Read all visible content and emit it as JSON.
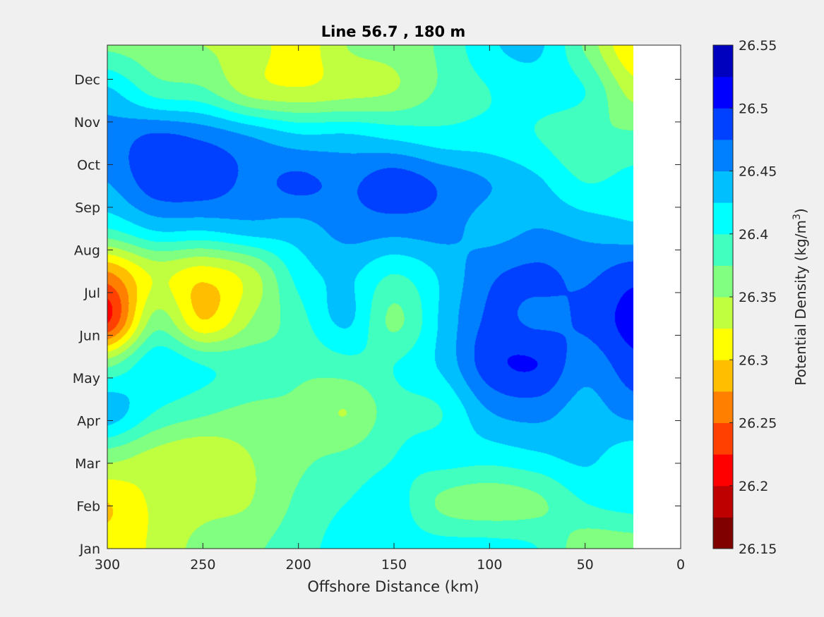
{
  "chart_data": {
    "type": "heatmap",
    "subtype": "filled-contour",
    "title": "Line 56.7 , 180 m",
    "xlabel": "Offshore Distance (km)",
    "xlim": [
      300,
      0
    ],
    "x_reversed": true,
    "x_ticks": [
      "300",
      "250",
      "200",
      "150",
      "100",
      "50",
      "0"
    ],
    "x_data_max": 25,
    "y_ticks": [
      "Jan",
      "Feb",
      "Mar",
      "Apr",
      "May",
      "Jun",
      "Jul",
      "Aug",
      "Sep",
      "Oct",
      "Nov",
      "Dec"
    ],
    "colorbar": {
      "label_main": "Potential Density (kg/m",
      "label_sup": "3",
      "label_end": ")",
      "ticks": [
        "26.15",
        "26.2",
        "26.25",
        "26.3",
        "26.35",
        "26.4",
        "26.45",
        "26.5",
        "26.55"
      ],
      "range": [
        26.15,
        26.55
      ],
      "levels": 16,
      "colors": [
        "#800000",
        "#bf0000",
        "#ff0000",
        "#ff4000",
        "#ff8000",
        "#ffbf00",
        "#ffff00",
        "#bfff40",
        "#80ff80",
        "#40ffbf",
        "#00ffff",
        "#00bfff",
        "#0080ff",
        "#0040ff",
        "#0000ff",
        "#0000bf"
      ]
    },
    "grid_x_km": [
      300,
      275,
      250,
      225,
      200,
      175,
      150,
      125,
      100,
      75,
      50,
      25
    ],
    "grid_y_month": [
      "Jan",
      "Feb",
      "Mar",
      "Apr",
      "May",
      "Jun",
      "Jul",
      "Aug",
      "Sep",
      "Oct",
      "Nov",
      "Dec"
    ],
    "values": [
      [
        26.31,
        26.33,
        26.36,
        26.37,
        26.39,
        26.41,
        26.41,
        26.41,
        26.41,
        26.4,
        26.36,
        26.36
      ],
      [
        26.3,
        26.33,
        26.34,
        26.35,
        26.38,
        26.4,
        26.41,
        26.37,
        26.36,
        26.37,
        26.4,
        26.41
      ],
      [
        26.36,
        26.34,
        26.33,
        26.35,
        26.37,
        26.38,
        26.4,
        26.41,
        26.41,
        26.42,
        26.43,
        26.41
      ],
      [
        26.44,
        26.4,
        26.38,
        26.37,
        26.37,
        26.35,
        26.39,
        26.4,
        26.45,
        26.46,
        26.44,
        26.46
      ],
      [
        26.37,
        26.42,
        26.4,
        26.39,
        26.38,
        26.39,
        26.4,
        26.43,
        26.49,
        26.5,
        26.46,
        26.49
      ],
      [
        26.22,
        26.36,
        26.3,
        26.35,
        26.39,
        26.43,
        26.37,
        26.43,
        26.48,
        26.47,
        26.48,
        26.51
      ],
      [
        26.27,
        26.33,
        26.31,
        26.34,
        26.41,
        26.43,
        26.4,
        26.43,
        26.47,
        26.48,
        26.47,
        26.49
      ],
      [
        26.4,
        26.43,
        26.43,
        26.44,
        26.44,
        26.46,
        26.46,
        26.46,
        26.44,
        26.45,
        26.44,
        26.43
      ],
      [
        26.45,
        26.49,
        26.49,
        26.47,
        26.48,
        26.47,
        26.49,
        26.47,
        26.45,
        26.43,
        26.4,
        26.41
      ],
      [
        26.46,
        26.48,
        26.47,
        26.45,
        26.43,
        26.43,
        26.42,
        26.41,
        26.41,
        26.4,
        26.38,
        26.38
      ],
      [
        26.43,
        26.39,
        26.38,
        26.34,
        26.33,
        26.34,
        26.35,
        26.38,
        26.4,
        26.41,
        26.4,
        26.34
      ],
      [
        26.37,
        26.36,
        26.35,
        26.34,
        26.31,
        26.35,
        26.36,
        26.38,
        26.42,
        26.43,
        26.37,
        26.3
      ]
    ]
  }
}
